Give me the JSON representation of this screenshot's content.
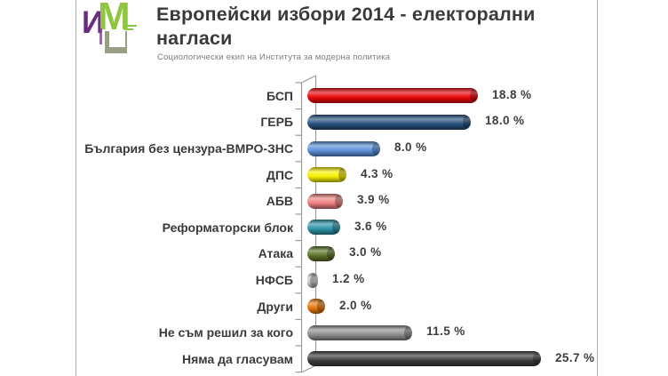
{
  "logo": {
    "letter_i": "И",
    "letter_m": "М"
  },
  "header": {
    "title": "Европейски избори 2014 - електорални нагласи",
    "subtitle": "Социологически екип на Института за модерна политика"
  },
  "chart_data": {
    "type": "bar",
    "orientation": "horizontal",
    "style": "3d-cylinder",
    "title": "Европейски избори 2014 - електорални нагласи",
    "grid": false,
    "legend": false,
    "value_axis_visible": false,
    "unit": "%",
    "xlim": [
      0,
      27
    ],
    "categories": [
      "БСП",
      "ГЕРБ",
      "България без цензура-ВМРО-ЗНС",
      "ДПС",
      "АБВ",
      "Реформаторски блок",
      "Атака",
      "НФСБ",
      "Други",
      "Не съм решил за кого",
      "Няма да гласувам"
    ],
    "values": [
      18.8,
      18.0,
      8.0,
      4.3,
      3.9,
      3.6,
      3.0,
      1.2,
      2.0,
      11.5,
      25.7
    ],
    "value_labels": [
      "18.8 %",
      "18.0 %",
      "8.0 %",
      "4.3 %",
      "3.9 %",
      "3.6 %",
      "3.0 %",
      "1.2 %",
      "2.0 %",
      "11.5 %",
      "25.7 %"
    ],
    "bar_colors": [
      "#ea070b",
      "#27507e",
      "#5b8fd8",
      "#f5ee00",
      "#ee8080",
      "#2e93a8",
      "#5d7226",
      "#cccccc",
      "#e67a0d",
      "#8e8e8e",
      "#3c3c3c"
    ],
    "axis_color": "#9b9b9b"
  }
}
